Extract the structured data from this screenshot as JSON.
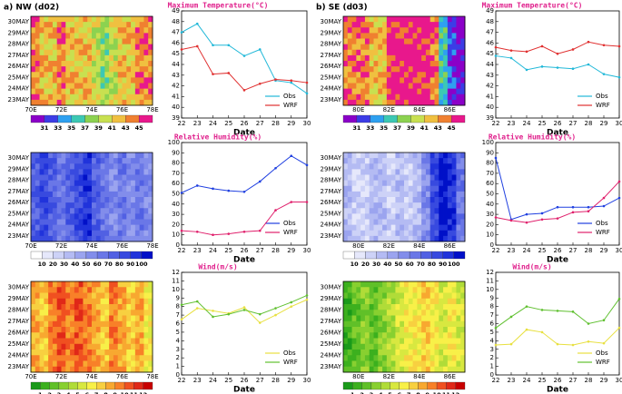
{
  "figure": {
    "panels": [
      "a) NW (d02)",
      "b) SE (d03)"
    ]
  },
  "chart_data": [
    {
      "type": "heatmap",
      "title": "Maximum Temperature(°C)",
      "xticks": [
        "70E",
        "72E",
        "74E",
        "76E",
        "78E"
      ],
      "yticks": [
        "23MAY",
        "24MAY",
        "25MAY",
        "26MAY",
        "27MAY",
        "28MAY",
        "29MAY",
        "30MAY"
      ],
      "colorbar_ticks": [
        31,
        33,
        35,
        37,
        39,
        41,
        43,
        45
      ],
      "colorbar_colors": [
        "#8b00c8",
        "#3c3ce6",
        "#2ea0f0",
        "#3cc8b4",
        "#8cd250",
        "#c8e050",
        "#f0c040",
        "#f08030",
        "#e8188c"
      ]
    },
    {
      "type": "line",
      "x": [
        22,
        23,
        24,
        25,
        26,
        27,
        28,
        29,
        30
      ],
      "xlim": [
        22,
        30
      ],
      "xticks": [
        22,
        23,
        24,
        25,
        26,
        27,
        28,
        29,
        30
      ],
      "ylim": [
        39,
        49
      ],
      "yticks": [
        39,
        40,
        41,
        42,
        43,
        44,
        45,
        46,
        47,
        48,
        49
      ],
      "x_label": "Date",
      "legend": "lower right",
      "series": [
        {
          "name": "Obs",
          "color": "#20b8d8",
          "values": [
            47,
            47.8,
            45.8,
            45.8,
            44.8,
            45.4,
            42.5,
            42.3,
            41.3
          ]
        },
        {
          "name": "WRF",
          "color": "#e03030",
          "values": [
            45.4,
            45.7,
            43.1,
            43.2,
            41.6,
            42.2,
            42.6,
            42.5,
            42.3
          ]
        }
      ]
    },
    {
      "type": "heatmap",
      "title": "Maximum Temperature(°C)",
      "xticks": [
        "80E",
        "82E",
        "84E",
        "86E"
      ],
      "yticks": [
        "23MAY",
        "24MAY",
        "25MAY",
        "26MAY",
        "27MAY",
        "28MAY",
        "29MAY",
        "30MAY"
      ],
      "colorbar_ticks": [
        31,
        33,
        35,
        37,
        39,
        41,
        43,
        45
      ],
      "colorbar_colors": [
        "#8b00c8",
        "#3c3ce6",
        "#2ea0f0",
        "#3cc8b4",
        "#8cd250",
        "#c8e050",
        "#f0c040",
        "#f08030",
        "#e8188c"
      ]
    },
    {
      "type": "line",
      "x": [
        22,
        23,
        24,
        25,
        26,
        27,
        28,
        29,
        30
      ],
      "xlim": [
        22,
        30
      ],
      "xticks": [
        22,
        23,
        24,
        25,
        26,
        27,
        28,
        29,
        30
      ],
      "ylim": [
        39,
        49
      ],
      "yticks": [
        39,
        40,
        41,
        42,
        43,
        44,
        45,
        46,
        47,
        48,
        49
      ],
      "x_label": "Date",
      "legend": "lower right",
      "series": [
        {
          "name": "Obs",
          "color": "#20b8d8",
          "values": [
            44.8,
            44.6,
            43.5,
            43.8,
            43.7,
            43.6,
            44.0,
            43.1,
            42.8
          ]
        },
        {
          "name": "WRF",
          "color": "#e03030",
          "values": [
            45.6,
            45.3,
            45.2,
            45.7,
            45.0,
            45.4,
            46.1,
            45.8,
            45.7
          ]
        }
      ]
    },
    {
      "type": "heatmap",
      "title": "Relative Humidity(%)",
      "xticks": [
        "70E",
        "72E",
        "74E",
        "76E",
        "78E"
      ],
      "yticks": [
        "23MAY",
        "24MAY",
        "25MAY",
        "26MAY",
        "27MAY",
        "28MAY",
        "29MAY",
        "30MAY"
      ],
      "colorbar_ticks": [
        10,
        20,
        30,
        40,
        50,
        60,
        70,
        80,
        90,
        100
      ],
      "colorbar_colors": [
        "#ffffff",
        "#e6e8fb",
        "#cdd2f7",
        "#b4bbf3",
        "#9ba4ef",
        "#828deb",
        "#6a77e7",
        "#5160e3",
        "#384adf",
        "#2033db",
        "#0010c8"
      ]
    },
    {
      "type": "line",
      "x": [
        22,
        23,
        24,
        25,
        26,
        27,
        28,
        29,
        30
      ],
      "xlim": [
        22,
        30
      ],
      "xticks": [
        22,
        23,
        24,
        25,
        26,
        27,
        28,
        29,
        30
      ],
      "ylim": [
        0,
        100
      ],
      "yticks": [
        0,
        10,
        20,
        30,
        40,
        50,
        60,
        70,
        80,
        90,
        100
      ],
      "x_label": "Date",
      "legend": "lower right",
      "series": [
        {
          "name": "Obs",
          "color": "#2040e0",
          "values": [
            51,
            58,
            55,
            53,
            52,
            62,
            75,
            87,
            78
          ]
        },
        {
          "name": "WRF",
          "color": "#e0206c",
          "values": [
            14,
            13,
            10,
            11,
            13,
            14,
            34,
            42,
            42
          ]
        }
      ]
    },
    {
      "type": "heatmap",
      "title": "Relative Humidity(%)",
      "xticks": [
        "80E",
        "82E",
        "84E",
        "86E"
      ],
      "yticks": [
        "23MAY",
        "24MAY",
        "25MAY",
        "26MAY",
        "27MAY",
        "28MAY",
        "29MAY",
        "30MAY"
      ],
      "colorbar_ticks": [
        10,
        20,
        30,
        40,
        50,
        60,
        70,
        80,
        90,
        100
      ],
      "colorbar_colors": [
        "#ffffff",
        "#e6e8fb",
        "#cdd2f7",
        "#b4bbf3",
        "#9ba4ef",
        "#828deb",
        "#6a77e7",
        "#5160e3",
        "#384adf",
        "#2033db",
        "#0010c8"
      ]
    },
    {
      "type": "line",
      "x": [
        22,
        23,
        24,
        25,
        26,
        27,
        28,
        29,
        30
      ],
      "xlim": [
        22,
        30
      ],
      "xticks": [
        22,
        23,
        24,
        25,
        26,
        27,
        28,
        29,
        30
      ],
      "ylim": [
        0,
        100
      ],
      "yticks": [
        0,
        10,
        20,
        30,
        40,
        50,
        60,
        70,
        80,
        90,
        100
      ],
      "x_label": "Date",
      "legend": "lower right",
      "series": [
        {
          "name": "Obs",
          "color": "#2040e0",
          "values": [
            85,
            25,
            30,
            31,
            37,
            37,
            37,
            38,
            46
          ]
        },
        {
          "name": "WRF",
          "color": "#e0206c",
          "values": [
            27,
            24,
            22,
            25,
            26,
            32,
            33,
            46,
            62
          ]
        }
      ]
    },
    {
      "type": "heatmap",
      "title": "Wind(m/s)",
      "xticks": [
        "70E",
        "72E",
        "74E",
        "76E",
        "78E"
      ],
      "yticks": [
        "23MAY",
        "24MAY",
        "25MAY",
        "26MAY",
        "27MAY",
        "28MAY",
        "29MAY",
        "30MAY"
      ],
      "colorbar_ticks": [
        1,
        2,
        3,
        4,
        5,
        6,
        7,
        8,
        9,
        10,
        11,
        12
      ],
      "colorbar_colors": [
        "#1a9a1a",
        "#3cb01e",
        "#60c028",
        "#88d030",
        "#b0dc38",
        "#d8e840",
        "#f8f048",
        "#f8d040",
        "#f8a830",
        "#f88028",
        "#f05020",
        "#e02818",
        "#c80000"
      ]
    },
    {
      "type": "line",
      "x": [
        22,
        23,
        24,
        25,
        26,
        27,
        28,
        29,
        30
      ],
      "xlim": [
        22,
        30
      ],
      "xticks": [
        22,
        23,
        24,
        25,
        26,
        27,
        28,
        29,
        30
      ],
      "ylim": [
        0,
        12
      ],
      "yticks": [
        0,
        1,
        2,
        3,
        4,
        5,
        6,
        7,
        8,
        9,
        10,
        11,
        12
      ],
      "x_label": "Date",
      "legend": "lower right",
      "series": [
        {
          "name": "Obs",
          "color": "#e8e040",
          "values": [
            6.5,
            7.8,
            7.5,
            7.2,
            7.9,
            6.1,
            7.0,
            8.0,
            8.8
          ]
        },
        {
          "name": "WRF",
          "color": "#60c030",
          "values": [
            8.2,
            8.6,
            6.8,
            7.1,
            7.6,
            7.1,
            7.8,
            8.5,
            9.3
          ]
        }
      ]
    },
    {
      "type": "heatmap",
      "title": "Wind(m/s)",
      "xticks": [
        "80E",
        "82E",
        "84E",
        "86E"
      ],
      "yticks": [
        "23MAY",
        "24MAY",
        "25MAY",
        "26MAY",
        "27MAY",
        "28MAY",
        "29MAY",
        "30MAY"
      ],
      "colorbar_ticks": [
        1,
        2,
        3,
        4,
        5,
        6,
        7,
        8,
        9,
        10,
        11,
        12
      ],
      "colorbar_colors": [
        "#1a9a1a",
        "#3cb01e",
        "#60c028",
        "#88d030",
        "#b0dc38",
        "#d8e840",
        "#f8f048",
        "#f8d040",
        "#f8a830",
        "#f88028",
        "#f05020",
        "#e02818",
        "#c80000"
      ]
    },
    {
      "type": "line",
      "x": [
        22,
        23,
        24,
        25,
        26,
        27,
        28,
        29,
        30
      ],
      "xlim": [
        22,
        30
      ],
      "xticks": [
        22,
        23,
        24,
        25,
        26,
        27,
        28,
        29,
        30
      ],
      "ylim": [
        0,
        12
      ],
      "yticks": [
        0,
        1,
        2,
        3,
        4,
        5,
        6,
        7,
        8,
        9,
        10,
        11,
        12
      ],
      "x_label": "Date",
      "legend": "lower right",
      "series": [
        {
          "name": "Obs",
          "color": "#e8e040",
          "values": [
            3.5,
            3.6,
            5.3,
            5.0,
            3.6,
            3.5,
            3.9,
            3.7,
            5.5
          ]
        },
        {
          "name": "WRF",
          "color": "#60c030",
          "values": [
            5.5,
            6.8,
            8.0,
            7.6,
            7.5,
            7.4,
            6.0,
            6.4,
            8.9
          ]
        }
      ]
    }
  ]
}
